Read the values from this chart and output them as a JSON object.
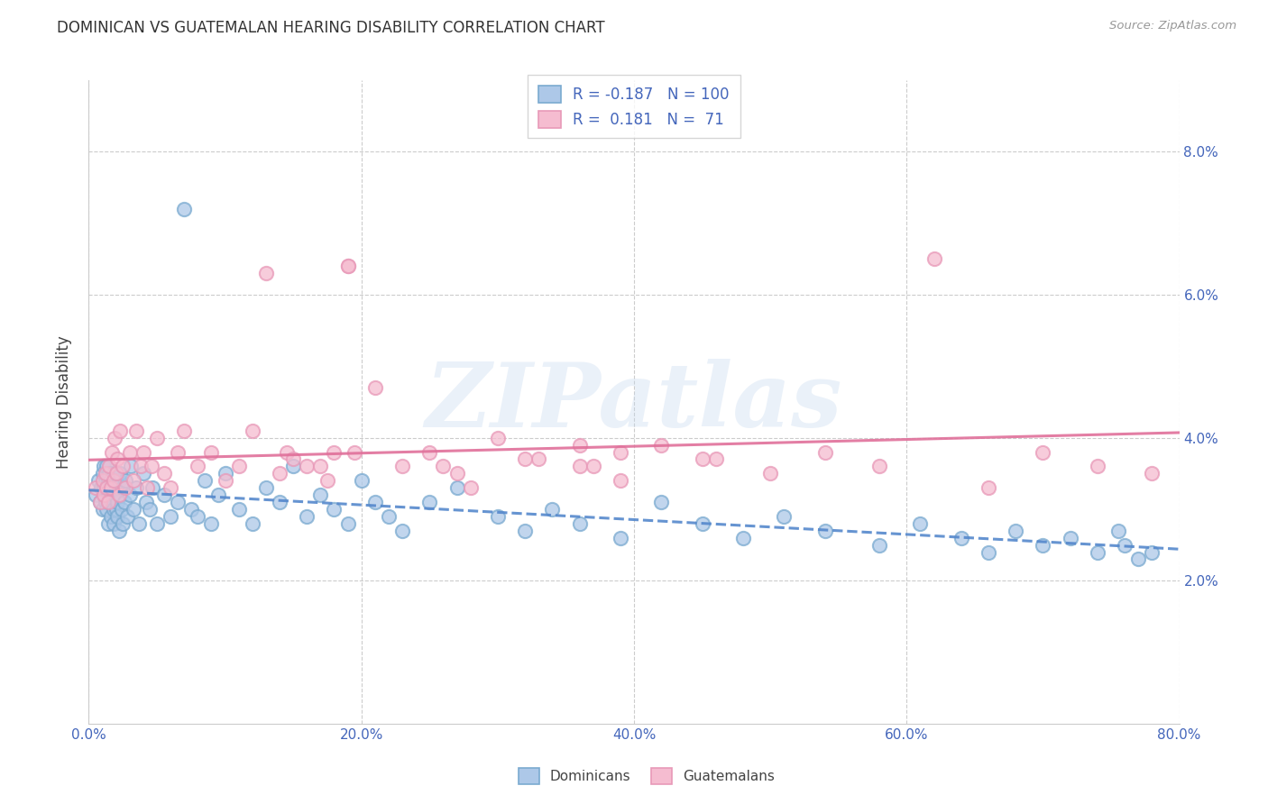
{
  "title": "DOMINICAN VS GUATEMALAN HEARING DISABILITY CORRELATION CHART",
  "source": "Source: ZipAtlas.com",
  "ylabel": "Hearing Disability",
  "xlim": [
    0.0,
    0.8
  ],
  "ylim": [
    0.0,
    0.09
  ],
  "xtick_labels": [
    "0.0%",
    "",
    "",
    "",
    "",
    "20.0%",
    "",
    "",
    "",
    "",
    "40.0%",
    "",
    "",
    "",
    "",
    "60.0%",
    "",
    "",
    "",
    "",
    "80.0%"
  ],
  "xtick_vals": [
    0.0,
    0.04,
    0.08,
    0.12,
    0.16,
    0.2,
    0.24,
    0.28,
    0.32,
    0.36,
    0.4,
    0.44,
    0.48,
    0.52,
    0.56,
    0.6,
    0.64,
    0.68,
    0.72,
    0.76,
    0.8
  ],
  "ytick_labels": [
    "2.0%",
    "4.0%",
    "6.0%",
    "8.0%"
  ],
  "ytick_vals": [
    0.02,
    0.04,
    0.06,
    0.08
  ],
  "dominican_color": "#adc8e8",
  "guatemalan_color": "#f5bcd0",
  "dominican_edge_color": "#7aaad0",
  "guatemalan_edge_color": "#e899b8",
  "dominican_line_color": "#5588cc",
  "guatemalan_line_color": "#e0709a",
  "R_dominican": "-0.187",
  "N_dominican": "100",
  "R_guatemalan": "0.181",
  "N_guatemalan": "71",
  "legend_label_1": "Dominicans",
  "legend_label_2": "Guatemalans",
  "watermark": "ZIPatlas",
  "background_color": "#ffffff",
  "grid_color": "#cccccc",
  "text_color": "#4466bb",
  "dom_x": [
    0.005,
    0.007,
    0.008,
    0.009,
    0.01,
    0.01,
    0.011,
    0.011,
    0.012,
    0.012,
    0.013,
    0.013,
    0.013,
    0.014,
    0.014,
    0.014,
    0.015,
    0.015,
    0.015,
    0.016,
    0.016,
    0.016,
    0.017,
    0.017,
    0.018,
    0.018,
    0.018,
    0.019,
    0.019,
    0.02,
    0.02,
    0.021,
    0.021,
    0.022,
    0.022,
    0.023,
    0.023,
    0.024,
    0.025,
    0.025,
    0.026,
    0.027,
    0.028,
    0.03,
    0.031,
    0.033,
    0.035,
    0.037,
    0.04,
    0.042,
    0.045,
    0.047,
    0.05,
    0.055,
    0.06,
    0.065,
    0.07,
    0.075,
    0.08,
    0.085,
    0.09,
    0.095,
    0.1,
    0.11,
    0.12,
    0.13,
    0.14,
    0.15,
    0.16,
    0.17,
    0.18,
    0.19,
    0.2,
    0.21,
    0.22,
    0.23,
    0.25,
    0.27,
    0.3,
    0.32,
    0.34,
    0.36,
    0.39,
    0.42,
    0.45,
    0.48,
    0.51,
    0.54,
    0.58,
    0.61,
    0.64,
    0.66,
    0.68,
    0.7,
    0.72,
    0.74,
    0.755,
    0.76,
    0.77,
    0.78
  ],
  "dom_y": [
    0.032,
    0.034,
    0.031,
    0.033,
    0.035,
    0.03,
    0.033,
    0.036,
    0.034,
    0.031,
    0.033,
    0.03,
    0.036,
    0.032,
    0.034,
    0.028,
    0.035,
    0.031,
    0.033,
    0.032,
    0.029,
    0.034,
    0.031,
    0.033,
    0.03,
    0.035,
    0.028,
    0.032,
    0.034,
    0.03,
    0.033,
    0.031,
    0.029,
    0.034,
    0.027,
    0.032,
    0.035,
    0.03,
    0.033,
    0.028,
    0.031,
    0.034,
    0.029,
    0.032,
    0.036,
    0.03,
    0.033,
    0.028,
    0.035,
    0.031,
    0.03,
    0.033,
    0.028,
    0.032,
    0.029,
    0.031,
    0.072,
    0.03,
    0.029,
    0.034,
    0.028,
    0.032,
    0.035,
    0.03,
    0.028,
    0.033,
    0.031,
    0.036,
    0.029,
    0.032,
    0.03,
    0.028,
    0.034,
    0.031,
    0.029,
    0.027,
    0.031,
    0.033,
    0.029,
    0.027,
    0.03,
    0.028,
    0.026,
    0.031,
    0.028,
    0.026,
    0.029,
    0.027,
    0.025,
    0.028,
    0.026,
    0.024,
    0.027,
    0.025,
    0.026,
    0.024,
    0.027,
    0.025,
    0.023,
    0.024
  ],
  "guat_x": [
    0.005,
    0.008,
    0.01,
    0.011,
    0.012,
    0.013,
    0.014,
    0.015,
    0.016,
    0.017,
    0.018,
    0.019,
    0.02,
    0.021,
    0.022,
    0.023,
    0.025,
    0.027,
    0.03,
    0.033,
    0.035,
    0.038,
    0.04,
    0.043,
    0.046,
    0.05,
    0.055,
    0.06,
    0.065,
    0.07,
    0.08,
    0.09,
    0.1,
    0.11,
    0.12,
    0.13,
    0.145,
    0.16,
    0.175,
    0.19,
    0.21,
    0.23,
    0.25,
    0.27,
    0.3,
    0.33,
    0.36,
    0.39,
    0.42,
    0.46,
    0.5,
    0.54,
    0.58,
    0.62,
    0.66,
    0.7,
    0.74,
    0.78,
    0.32,
    0.28,
    0.17,
    0.19,
    0.36,
    0.195,
    0.26,
    0.39,
    0.45,
    0.37,
    0.14,
    0.15,
    0.18
  ],
  "guat_y": [
    0.033,
    0.031,
    0.034,
    0.032,
    0.035,
    0.033,
    0.031,
    0.036,
    0.033,
    0.038,
    0.034,
    0.04,
    0.035,
    0.037,
    0.032,
    0.041,
    0.036,
    0.033,
    0.038,
    0.034,
    0.041,
    0.036,
    0.038,
    0.033,
    0.036,
    0.04,
    0.035,
    0.033,
    0.038,
    0.041,
    0.036,
    0.038,
    0.034,
    0.036,
    0.041,
    0.063,
    0.038,
    0.036,
    0.034,
    0.064,
    0.047,
    0.036,
    0.038,
    0.035,
    0.04,
    0.037,
    0.036,
    0.034,
    0.039,
    0.037,
    0.035,
    0.038,
    0.036,
    0.065,
    0.033,
    0.038,
    0.036,
    0.035,
    0.037,
    0.033,
    0.036,
    0.064,
    0.039,
    0.038,
    0.036,
    0.038,
    0.037,
    0.036,
    0.035,
    0.037,
    0.038
  ]
}
